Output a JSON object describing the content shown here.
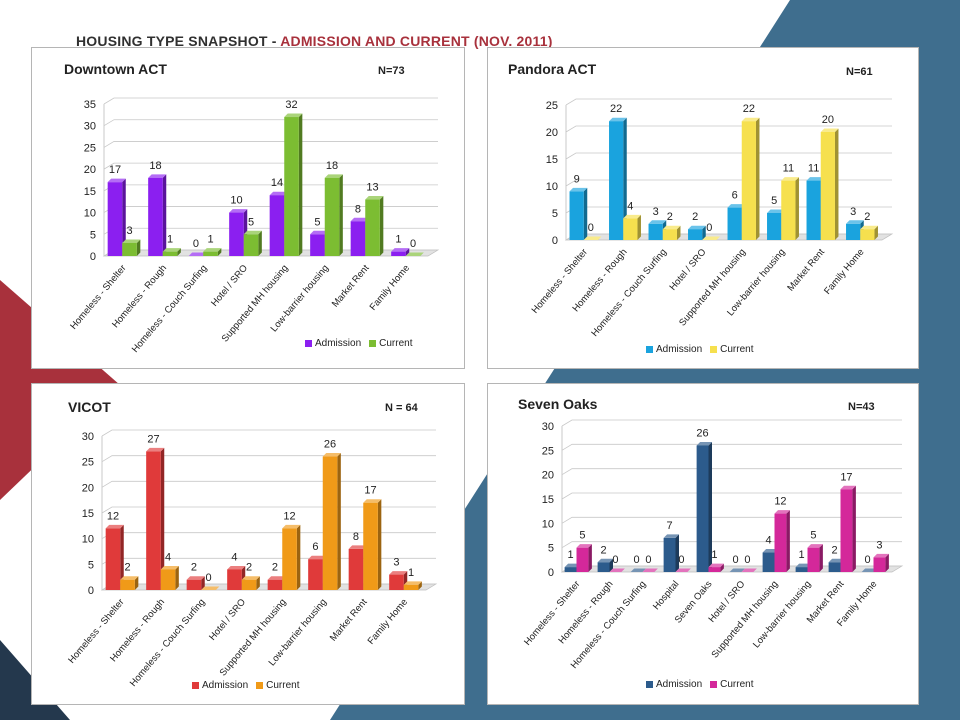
{
  "slide": {
    "title_part1": "HOUSING TYPE SNAPSHOT - ",
    "title_part2": "ADMISSION AND CURRENT (NOV. 2011)",
    "colors": {
      "dark_blue": "#3f6e8e",
      "red": "#a8313c",
      "navy": "#24384d"
    }
  },
  "chart_data": [
    {
      "type": "bar",
      "title": "Downtown ACT",
      "n_label": "N=73",
      "categories": [
        "Homeless - Shelter",
        "Homeless - Rough",
        "Homeless - Couch Surfing",
        "Hotel / SRO",
        "Supported MH housing",
        "Low-barrier housing",
        "Market Rent",
        "Family Home"
      ],
      "series": [
        {
          "name": "Admission",
          "values": [
            17,
            18,
            0,
            10,
            14,
            5,
            8,
            1
          ],
          "color": "#8b1ff0"
        },
        {
          "name": "Current",
          "values": [
            3,
            1,
            1,
            5,
            32,
            18,
            13,
            0
          ],
          "color": "#7cbd32"
        }
      ],
      "ylim": [
        0,
        35
      ],
      "yticks": [
        0,
        5,
        10,
        15,
        20,
        25,
        30,
        35
      ],
      "grid": true,
      "legend_position": "bottom-right"
    },
    {
      "type": "bar",
      "title": "Pandora ACT",
      "n_label": "N=61",
      "categories": [
        "Homeless - Shelter",
        "Homeless - Rough",
        "Homeless - Couch Surfing",
        "Hotel / SRO",
        "Supported MH housing",
        "Low-barrier housing",
        "Market Rent",
        "Family Home"
      ],
      "series": [
        {
          "name": "Admission",
          "values": [
            9,
            22,
            3,
            2,
            6,
            5,
            11,
            3
          ],
          "color": "#1aa3de"
        },
        {
          "name": "Current",
          "values": [
            0,
            4,
            2,
            0,
            22,
            11,
            20,
            2
          ],
          "color": "#f6e04e"
        }
      ],
      "ylim": [
        0,
        25
      ],
      "yticks": [
        0,
        5,
        10,
        15,
        20,
        25
      ],
      "grid": true,
      "legend_position": "bottom"
    },
    {
      "type": "bar",
      "title": "VICOT",
      "n_label": "N = 64",
      "categories": [
        "Homeless - Shelter",
        "Homeless - Rough",
        "Homeless - Couch Surfing",
        "Hotel / SRO",
        "Supported MH housing",
        "Low-barrier housing",
        "Market Rent",
        "Family Home"
      ],
      "series": [
        {
          "name": "Admission",
          "values": [
            12,
            27,
            2,
            4,
            2,
            6,
            8,
            3
          ],
          "color": "#e03a3a"
        },
        {
          "name": "Current",
          "values": [
            2,
            4,
            0,
            2,
            12,
            26,
            17,
            1
          ],
          "color": "#f09a18"
        }
      ],
      "ylim": [
        0,
        30
      ],
      "yticks": [
        0,
        5,
        10,
        15,
        20,
        25,
        30
      ],
      "grid": true,
      "legend_position": "bottom"
    },
    {
      "type": "bar",
      "title": "Seven Oaks",
      "n_label": "N=43",
      "categories": [
        "Homeless - Shelter",
        "Homeless - Rough",
        "Homeless - Couch Surfing",
        "Hospital",
        "Seven Oaks",
        "Hotel / SRO",
        "Supported MH housing",
        "Low-barrier housing",
        "Market Rent",
        "Family Home"
      ],
      "series": [
        {
          "name": "Admission",
          "values": [
            1,
            2,
            0,
            7,
            26,
            0,
            4,
            1,
            2,
            0
          ],
          "color": "#2c5b8c"
        },
        {
          "name": "Current",
          "values": [
            5,
            0,
            0,
            0,
            1,
            0,
            12,
            5,
            17,
            3
          ],
          "color": "#d4289a"
        }
      ],
      "ylim": [
        0,
        30
      ],
      "yticks": [
        0,
        5,
        10,
        15,
        20,
        25,
        30
      ],
      "grid": true,
      "legend_position": "bottom"
    }
  ]
}
